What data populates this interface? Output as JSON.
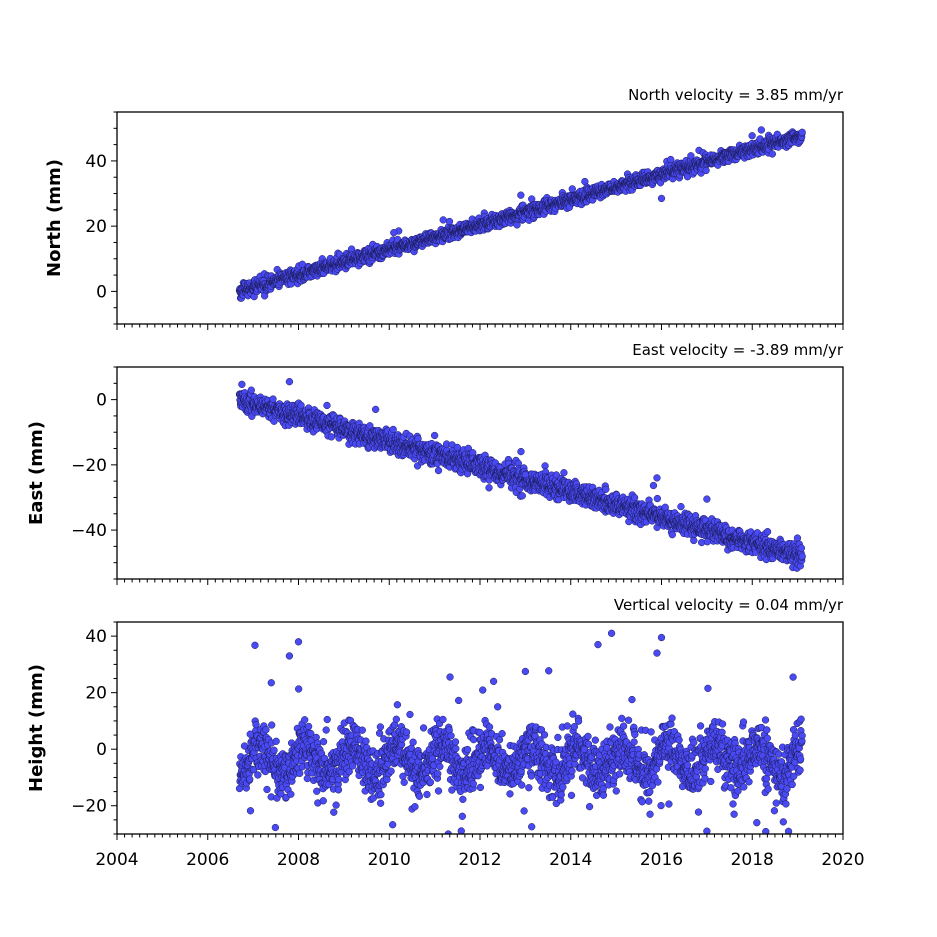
{
  "chart_data": [
    {
      "type": "scatter",
      "title": "North velocity = 3.85 mm/yr",
      "xlabel": "",
      "ylabel": "North (mm)",
      "xlim": [
        2004,
        2020
      ],
      "ylim": [
        -10,
        55
      ],
      "yticks": [
        0,
        20,
        40
      ],
      "x_start": 2006.7,
      "x_end": 2019.1,
      "velocity_mm_per_yr": 3.85,
      "intercept_mm": 0,
      "scatter_mm": 1.0,
      "point_count": 2150,
      "outliers": [
        {
          "x": 2016.0,
          "y": 28.5
        },
        {
          "x": 2018.2,
          "y": 49.5
        },
        {
          "x": 2010.1,
          "y": 18.0
        },
        {
          "x": 2012.9,
          "y": 29.5
        }
      ],
      "marker_color": "#4a4af5"
    },
    {
      "type": "scatter",
      "title": "East velocity = -3.89 mm/yr",
      "xlabel": "",
      "ylabel": "East (mm)",
      "xlim": [
        2004,
        2020
      ],
      "ylim": [
        -55,
        10
      ],
      "yticks": [
        0,
        -20,
        -40
      ],
      "x_start": 2006.7,
      "x_end": 2019.1,
      "velocity_mm_per_yr": -3.89,
      "intercept_mm": 0,
      "scatter_mm": 1.6,
      "point_count": 2150,
      "outliers": [
        {
          "x": 2007.8,
          "y": 5.5
        },
        {
          "x": 2015.9,
          "y": -24.0
        },
        {
          "x": 2011.0,
          "y": -11.0
        },
        {
          "x": 2013.0,
          "y": -23.0
        },
        {
          "x": 2017.0,
          "y": -30.5
        },
        {
          "x": 2009.7,
          "y": -3.0
        }
      ],
      "marker_color": "#4a4af5"
    },
    {
      "type": "scatter",
      "title": "Vertical velocity = 0.04 mm/yr",
      "xlabel": "",
      "ylabel": "Height (mm)",
      "xlim": [
        2004,
        2020
      ],
      "ylim": [
        -30,
        45
      ],
      "yticks": [
        -20,
        0,
        20,
        40
      ],
      "xticks": [
        2004,
        2006,
        2008,
        2010,
        2012,
        2014,
        2016,
        2018,
        2020
      ],
      "x_start": 2006.7,
      "x_end": 2019.1,
      "velocity_mm_per_yr": 0.04,
      "intercept_mm": -4,
      "scatter_mm": 6.0,
      "point_count": 2150,
      "outliers": [
        {
          "x": 2007.8,
          "y": 33.0
        },
        {
          "x": 2008.0,
          "y": 38.0
        },
        {
          "x": 2014.9,
          "y": 41.0
        },
        {
          "x": 2016.0,
          "y": 39.5
        },
        {
          "x": 2014.6,
          "y": 37.0
        },
        {
          "x": 2015.9,
          "y": 34.0
        },
        {
          "x": 2018.9,
          "y": 25.5
        },
        {
          "x": 2013.0,
          "y": 27.5
        },
        {
          "x": 2012.3,
          "y": 24.0
        },
        {
          "x": 2007.4,
          "y": 23.5
        },
        {
          "x": 2017.0,
          "y": -29.0
        },
        {
          "x": 2017.6,
          "y": -23.0
        },
        {
          "x": 2018.1,
          "y": -26.0
        },
        {
          "x": 2011.3,
          "y": -30.0
        }
      ],
      "marker_color": "#4a4af5"
    }
  ]
}
